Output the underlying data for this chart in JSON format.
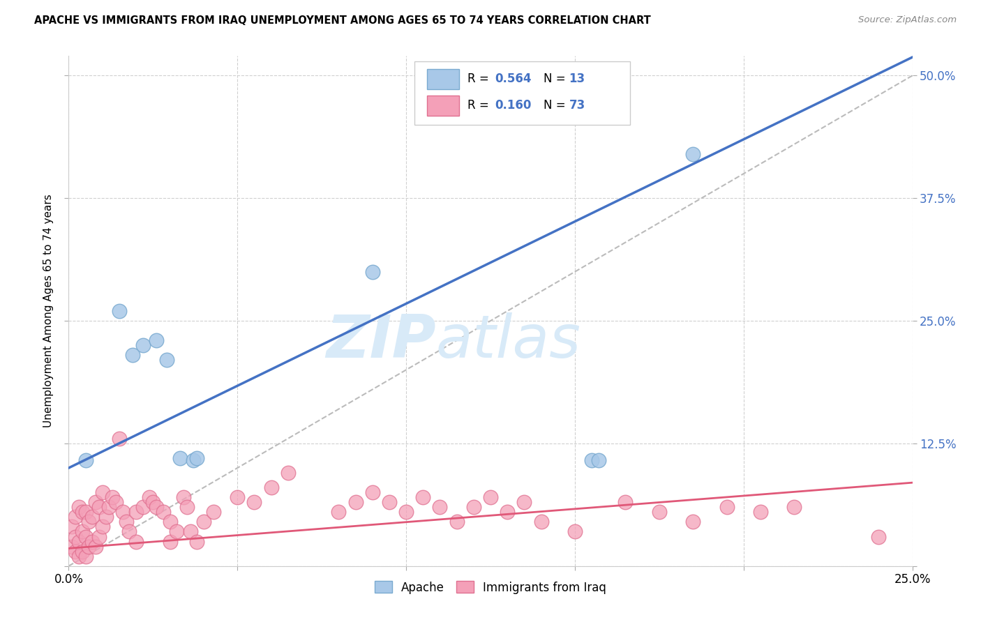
{
  "title": "APACHE VS IMMIGRANTS FROM IRAQ UNEMPLOYMENT AMONG AGES 65 TO 74 YEARS CORRELATION CHART",
  "source": "Source: ZipAtlas.com",
  "ylabel": "Unemployment Among Ages 65 to 74 years",
  "xlim": [
    0.0,
    0.25
  ],
  "ylim": [
    0.0,
    0.52
  ],
  "apache_color": "#a8c8e8",
  "apache_edge_color": "#7aaad0",
  "iraq_color": "#f4a0b8",
  "iraq_edge_color": "#e07090",
  "apache_line_color": "#4472c4",
  "iraq_line_color": "#e05878",
  "diag_line_color": "#bbbbbb",
  "legend_text_color": "#4472c4",
  "watermark_color": "#d8eaf8",
  "apache_line_x0": 0.0,
  "apache_line_y0": 0.1,
  "apache_line_x1": 0.2,
  "apache_line_y1": 0.435,
  "iraq_line_x0": 0.0,
  "iraq_line_y0": 0.018,
  "iraq_line_x1": 0.25,
  "iraq_line_y1": 0.085,
  "apache_x": [
    0.005,
    0.015,
    0.019,
    0.022,
    0.026,
    0.029,
    0.033,
    0.037,
    0.038,
    0.09,
    0.155,
    0.157,
    0.185
  ],
  "apache_y": [
    0.108,
    0.26,
    0.215,
    0.225,
    0.23,
    0.21,
    0.11,
    0.108,
    0.11,
    0.3,
    0.108,
    0.108,
    0.42
  ],
  "iraq_x": [
    0.001,
    0.001,
    0.002,
    0.002,
    0.002,
    0.003,
    0.003,
    0.003,
    0.004,
    0.004,
    0.004,
    0.005,
    0.005,
    0.005,
    0.006,
    0.006,
    0.007,
    0.007,
    0.008,
    0.008,
    0.009,
    0.009,
    0.01,
    0.01,
    0.011,
    0.012,
    0.013,
    0.014,
    0.015,
    0.016,
    0.017,
    0.018,
    0.02,
    0.02,
    0.022,
    0.024,
    0.025,
    0.026,
    0.028,
    0.03,
    0.03,
    0.032,
    0.034,
    0.035,
    0.036,
    0.038,
    0.04,
    0.043,
    0.05,
    0.055,
    0.06,
    0.065,
    0.08,
    0.085,
    0.09,
    0.095,
    0.1,
    0.105,
    0.11,
    0.115,
    0.12,
    0.125,
    0.13,
    0.135,
    0.14,
    0.15,
    0.165,
    0.175,
    0.185,
    0.195,
    0.205,
    0.215,
    0.24
  ],
  "iraq_y": [
    0.02,
    0.04,
    0.015,
    0.03,
    0.05,
    0.01,
    0.025,
    0.06,
    0.015,
    0.035,
    0.055,
    0.01,
    0.03,
    0.055,
    0.02,
    0.045,
    0.025,
    0.05,
    0.02,
    0.065,
    0.03,
    0.06,
    0.04,
    0.075,
    0.05,
    0.06,
    0.07,
    0.065,
    0.13,
    0.055,
    0.045,
    0.035,
    0.025,
    0.055,
    0.06,
    0.07,
    0.065,
    0.06,
    0.055,
    0.025,
    0.045,
    0.035,
    0.07,
    0.06,
    0.035,
    0.025,
    0.045,
    0.055,
    0.07,
    0.065,
    0.08,
    0.095,
    0.055,
    0.065,
    0.075,
    0.065,
    0.055,
    0.07,
    0.06,
    0.045,
    0.06,
    0.07,
    0.055,
    0.065,
    0.045,
    0.035,
    0.065,
    0.055,
    0.045,
    0.06,
    0.055,
    0.06,
    0.03
  ]
}
